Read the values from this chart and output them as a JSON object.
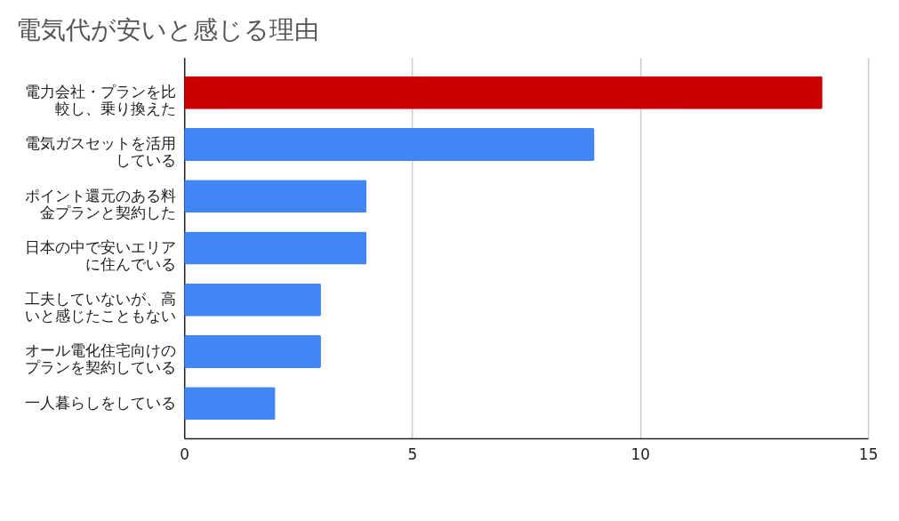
{
  "chart_data": {
    "type": "bar",
    "orientation": "horizontal",
    "title": "電気代が安いと感じる理由",
    "categories": [
      "電力会社・プランを比較し、乗り換えた",
      "電気ガスセットを活用している",
      "ポイント還元のある料金プランと契約した",
      "日本の中で安いエリアに住んでいる",
      "工夫していないが、高いと感じたこともない",
      "オール電化住宅向けのプランを契約している",
      "一人暮らしをしている"
    ],
    "values": [
      14,
      9,
      4,
      4,
      3,
      3,
      2
    ],
    "colors": [
      "#cc0000",
      "#4285f4",
      "#4285f4",
      "#4285f4",
      "#4285f4",
      "#4285f4",
      "#4285f4"
    ],
    "xlim": [
      0,
      15
    ],
    "xticks": [
      0,
      5,
      10,
      15
    ],
    "grid": "x"
  }
}
